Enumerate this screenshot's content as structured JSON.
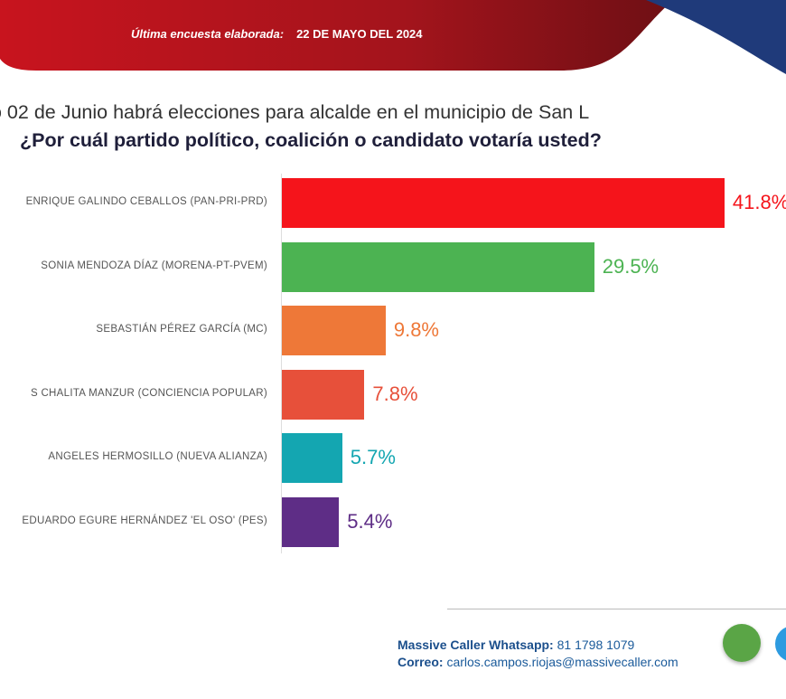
{
  "header": {
    "survey_label": "Última encuesta elaborada:",
    "survey_date": "22 DE MAYO DEL 2024",
    "colors": {
      "banner": "#b0141c",
      "accent_blue": "#1f3a7a"
    }
  },
  "question": {
    "line1": "o 02 de Junio habrá elecciones para alcalde en el municipio de San L",
    "line2": "¿Por cuál partido político, coalición o candidato votaría usted?"
  },
  "chart_data": {
    "type": "bar",
    "orientation": "horizontal",
    "categories": [
      "ENRIQUE GALINDO CEBALLOS (PAN-PRI-PRD)",
      "SONIA MENDOZA DÍAZ (MORENA-PT-PVEM)",
      "SEBASTIÁN PÉREZ GARCÍA (MC)",
      "S CHALITA MANZUR (CONCIENCIA POPULAR)",
      "ANGELES HERMOSILLO (NUEVA ALIANZA)",
      "EDUARDO EGURE HERNÁNDEZ 'EL OSO' (PES)"
    ],
    "values": [
      41.8,
      29.5,
      9.8,
      7.8,
      5.7,
      5.4
    ],
    "value_labels": [
      "41.8%",
      "29.5%",
      "9.8%",
      "7.8%",
      "5.7%",
      "5.4%"
    ],
    "colors": [
      "#f5141b",
      "#4cb352",
      "#ee7838",
      "#e7503a",
      "#14a6b1",
      "#5e2d86"
    ],
    "grid": false
  },
  "footer": {
    "whatsapp_label": "Massive Caller Whatsapp:",
    "whatsapp_number": "81 1798 1079",
    "email_label": "Correo:",
    "email": "carlos.campos.riojas@massivecaller.com",
    "icons": [
      "whatsapp-icon",
      "twitter-icon"
    ]
  }
}
